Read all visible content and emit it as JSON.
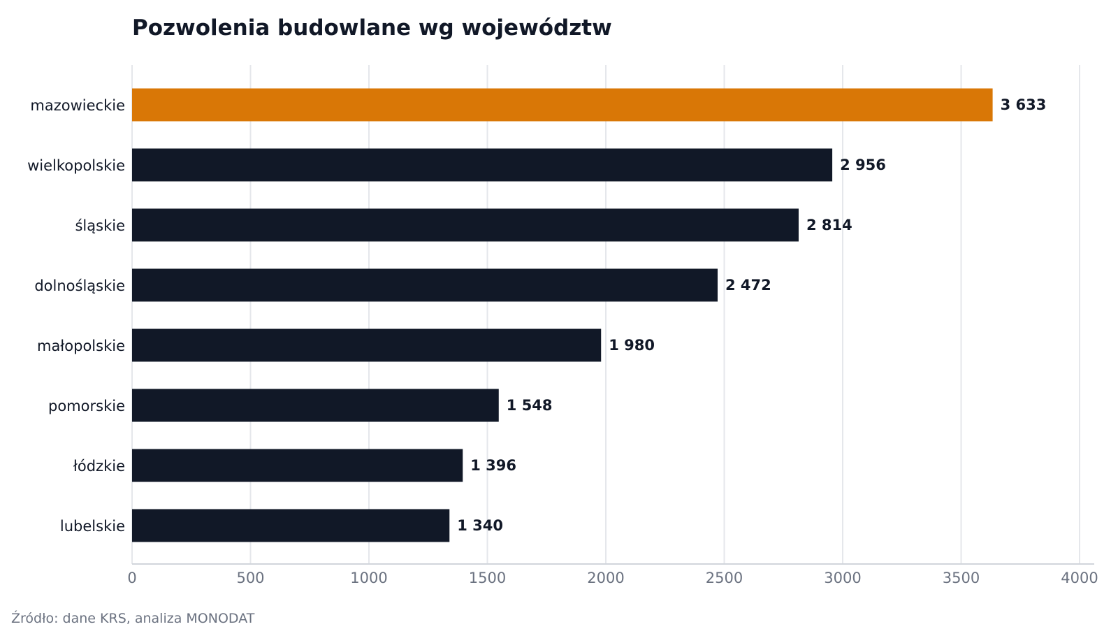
{
  "chart_data": {
    "type": "bar",
    "orientation": "horizontal",
    "title": "Pozwolenia budowlane wg województw",
    "categories": [
      "mazowieckie",
      "wielkopolskie",
      "śląskie",
      "dolnośląskie",
      "małopolskie",
      "pomorskie",
      "łódzkie",
      "lubelskie"
    ],
    "values": [
      3633,
      2956,
      2814,
      2472,
      1980,
      1548,
      1396,
      1340
    ],
    "value_labels": [
      "3 633",
      "2 956",
      "2 814",
      "2 472",
      "1 980",
      "1 548",
      "1 396",
      "1 340"
    ],
    "xlim": [
      0,
      4000
    ],
    "x_ticks": [
      0,
      500,
      1000,
      1500,
      2000,
      2500,
      3000,
      3500,
      4000
    ],
    "x_tick_labels": [
      "0",
      "500",
      "1000",
      "1500",
      "2000",
      "2500",
      "3000",
      "3500",
      "4000"
    ],
    "xlabel": "",
    "ylabel": "",
    "grid": "vertical",
    "highlight_index": 0,
    "colors": {
      "highlight": "#d97706",
      "bar": "#111827",
      "grid": "#e5e7eb",
      "axis": "#d1d5db"
    }
  },
  "source": "Źródło: dane KRS, analiza MONODAT"
}
